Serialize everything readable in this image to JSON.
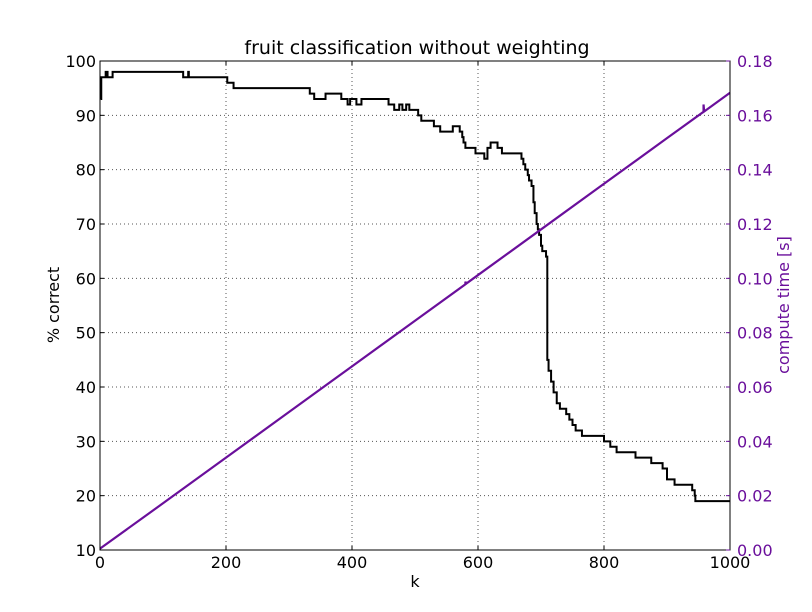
{
  "chart_data": {
    "type": "line",
    "title": "fruit classification without weighting",
    "xlabel": "k",
    "ylabel_left": "% correct",
    "ylabel_right": "compute time [s]",
    "xlim": [
      0,
      1000
    ],
    "ylim_left": [
      10,
      100
    ],
    "ylim_right": [
      0.0,
      0.18
    ],
    "grid": true,
    "x_ticks": [
      0,
      200,
      400,
      600,
      800,
      1000
    ],
    "x_tick_labels": [
      "0",
      "200",
      "400",
      "600",
      "800",
      "1000"
    ],
    "y_left_ticks": [
      10,
      20,
      30,
      40,
      50,
      60,
      70,
      80,
      90,
      100
    ],
    "y_left_tick_labels": [
      "10",
      "20",
      "30",
      "40",
      "50",
      "60",
      "70",
      "80",
      "90",
      "100"
    ],
    "y_right_ticks": [
      0.0,
      0.02,
      0.04,
      0.06,
      0.08,
      0.1,
      0.12,
      0.14,
      0.16,
      0.18
    ],
    "y_right_tick_labels": [
      "0.00",
      "0.02",
      "0.04",
      "0.06",
      "0.08",
      "0.10",
      "0.12",
      "0.14",
      "0.16",
      "0.18"
    ],
    "colors": {
      "accuracy": "#000000",
      "time": "#6a0f9b",
      "grid": "#555555"
    },
    "series": [
      {
        "name": "% correct",
        "axis": "left",
        "color": "#000000",
        "step": true,
        "points": [
          [
            1,
            93
          ],
          [
            2,
            97
          ],
          [
            9,
            98
          ],
          [
            12,
            97
          ],
          [
            20,
            98
          ],
          [
            130,
            98
          ],
          [
            132,
            97
          ],
          [
            140,
            98
          ],
          [
            141,
            97
          ],
          [
            200,
            97
          ],
          [
            202,
            96
          ],
          [
            212,
            95
          ],
          [
            330,
            95
          ],
          [
            333,
            94
          ],
          [
            340,
            93
          ],
          [
            358,
            94
          ],
          [
            383,
            93
          ],
          [
            393,
            92
          ],
          [
            397,
            93
          ],
          [
            407,
            92
          ],
          [
            415,
            93
          ],
          [
            458,
            92
          ],
          [
            467,
            91
          ],
          [
            475,
            92
          ],
          [
            480,
            91
          ],
          [
            486,
            92
          ],
          [
            491,
            91
          ],
          [
            505,
            90
          ],
          [
            510,
            89
          ],
          [
            530,
            88
          ],
          [
            540,
            87
          ],
          [
            560,
            88
          ],
          [
            571,
            87
          ],
          [
            575,
            86
          ],
          [
            577,
            85
          ],
          [
            580,
            84
          ],
          [
            596,
            83
          ],
          [
            610,
            82
          ],
          [
            615,
            84
          ],
          [
            620,
            85
          ],
          [
            631,
            84
          ],
          [
            638,
            83
          ],
          [
            669,
            82
          ],
          [
            672,
            81
          ],
          [
            675,
            80
          ],
          [
            679,
            79
          ],
          [
            681,
            78
          ],
          [
            685,
            77
          ],
          [
            688,
            74
          ],
          [
            690,
            72
          ],
          [
            693,
            70
          ],
          [
            695,
            69
          ],
          [
            697,
            68
          ],
          [
            700,
            66
          ],
          [
            702,
            65
          ],
          [
            708,
            64
          ],
          [
            710,
            45
          ],
          [
            712,
            43
          ],
          [
            716,
            41
          ],
          [
            720,
            39
          ],
          [
            725,
            37
          ],
          [
            730,
            36
          ],
          [
            740,
            35
          ],
          [
            745,
            34
          ],
          [
            750,
            33
          ],
          [
            755,
            32
          ],
          [
            765,
            31
          ],
          [
            800,
            30
          ],
          [
            810,
            29
          ],
          [
            820,
            28
          ],
          [
            850,
            27
          ],
          [
            875,
            26
          ],
          [
            893,
            25
          ],
          [
            900,
            23
          ],
          [
            912,
            22
          ],
          [
            940,
            21
          ],
          [
            944,
            20
          ],
          [
            945,
            19
          ],
          [
            1000,
            19
          ]
        ]
      },
      {
        "name": "compute time [s]",
        "axis": "right",
        "color": "#6a0f9b",
        "step": false,
        "points": [
          [
            0,
            0.0005
          ],
          [
            100,
            0.0172
          ],
          [
            200,
            0.034
          ],
          [
            300,
            0.0508
          ],
          [
            400,
            0.0676
          ],
          [
            500,
            0.0844
          ],
          [
            580,
            0.0978
          ],
          [
            580,
            0.0988
          ],
          [
            581,
            0.098
          ],
          [
            600,
            0.1012
          ],
          [
            700,
            0.118
          ],
          [
            800,
            0.1348
          ],
          [
            900,
            0.1516
          ],
          [
            958,
            0.1613
          ],
          [
            958,
            0.164
          ],
          [
            959,
            0.1614
          ],
          [
            1000,
            0.1683
          ]
        ]
      }
    ]
  }
}
